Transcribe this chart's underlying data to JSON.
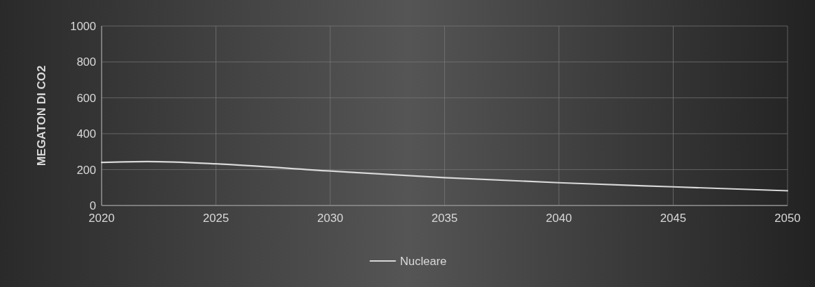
{
  "chart_data": {
    "type": "line",
    "ylabel": "MEGATON DI CO2",
    "series": [
      {
        "name": "Nucleare",
        "color": "#d9d9d9",
        "x": [
          2020,
          2022,
          2025,
          2030,
          2035,
          2040,
          2045,
          2050
        ],
        "values": [
          240,
          245,
          232,
          192,
          155,
          127,
          104,
          82
        ]
      }
    ],
    "xlim": [
      2020,
      2050
    ],
    "xticks": [
      2020,
      2025,
      2030,
      2035,
      2040,
      2045,
      2050
    ],
    "ylim": [
      0,
      1000
    ],
    "yticks": [
      0,
      200,
      400,
      600,
      800,
      1000
    ],
    "grid": true,
    "legend": "bottom",
    "marker": "none",
    "line_style": "solid"
  }
}
